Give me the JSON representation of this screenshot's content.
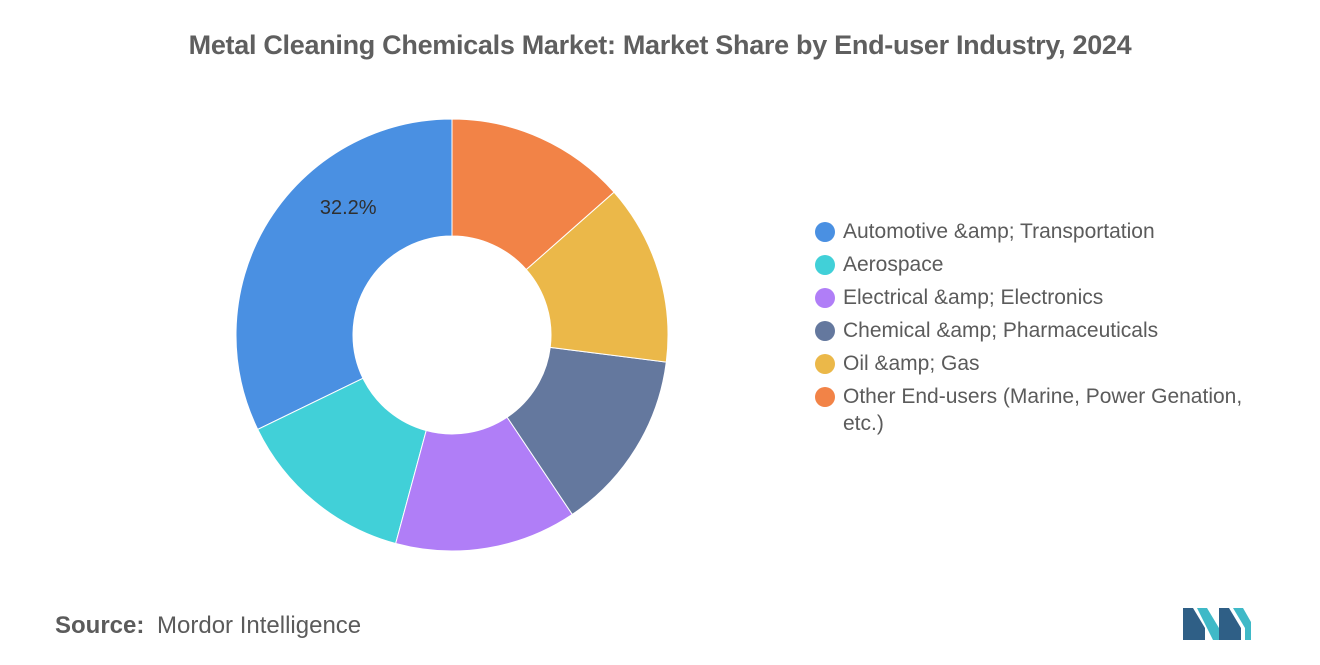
{
  "title": "Metal Cleaning Chemicals Market: Market Share by End-user Industry, 2024",
  "chart_data": {
    "type": "pie",
    "variant": "donut",
    "categories": [
      "Automotive &amp; Transportation",
      "Aerospace",
      "Electrical &amp; Electronics",
      "Chemical &amp; Pharmaceuticals",
      "Oil &amp; Gas",
      "Other End-users (Marine, Power Genation, etc.)"
    ],
    "values": [
      32.2,
      13.6,
      13.6,
      13.6,
      13.5,
      13.5
    ],
    "colors": [
      "#4a90e2",
      "#41d0d8",
      "#b07ef7",
      "#64789e",
      "#ebb849",
      "#f28347"
    ],
    "data_labels": [
      {
        "category": "Automotive &amp; Transportation",
        "text": "32.2%"
      }
    ],
    "legend_position": "right",
    "legend_icon_colors": [
      "#4a90e2",
      "#41d0d8",
      "#b07ef7",
      "#64789e",
      "#ebb849",
      "#f28347"
    ]
  },
  "source": {
    "label": "Source:",
    "value": "Mordor Intelligence"
  },
  "logo_icon": "mordor-intelligence-logo-icon"
}
